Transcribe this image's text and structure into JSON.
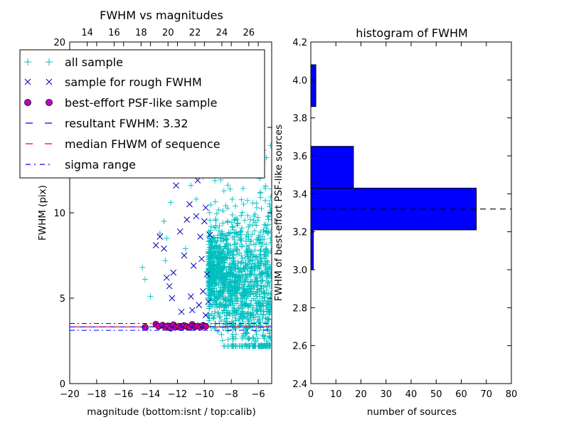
{
  "chart_data": [
    {
      "type": "scatter",
      "title": "FWHM vs magnitudes",
      "xlabel": "magnitude (bottom:isnt / top:calib)",
      "ylabel": "FWHM (pix)",
      "xlim": [
        -20,
        -5
      ],
      "ylim": [
        0,
        20
      ],
      "x_ticks": [
        -20,
        -18,
        -16,
        -14,
        -12,
        -10,
        -8,
        -6
      ],
      "x_tick_labels": [
        "−20",
        "−18",
        "−16",
        "−14",
        "−12",
        "−10",
        "−8",
        "−6"
      ],
      "y_ticks": [
        0,
        5,
        10,
        15,
        20
      ],
      "y_tick_labels": [
        "0",
        "5",
        "10",
        "15",
        "20"
      ],
      "top_x_ticks": [
        14,
        16,
        18,
        20,
        22,
        24,
        26
      ],
      "top_x_offset": 32.7,
      "legend_position": "upper left",
      "series": [
        {
          "name": "all sample",
          "marker": "+",
          "color": "#00bfbf",
          "cluster": {
            "x_range": [
              -9.7,
              -5
            ],
            "y_center": 6.5,
            "y_range": [
              2.2,
              19.5
            ],
            "count": 1500
          },
          "scatter": [
            [
              -14.6,
              6.8
            ],
            [
              -14.4,
              6.1
            ],
            [
              -14.0,
              5.1
            ],
            [
              -13.3,
              8.8
            ],
            [
              -13.0,
              9.5
            ],
            [
              -12.8,
              8.5
            ],
            [
              -12.5,
              10.6
            ],
            [
              -12.0,
              12.6
            ],
            [
              -11.6,
              13.1
            ],
            [
              -11.0,
              11.6
            ],
            [
              -10.6,
              10.8
            ],
            [
              -10.4,
              13.5
            ],
            [
              -10.1,
              12.1
            ],
            [
              -12.9,
              7.2
            ],
            [
              -11.4,
              7.9
            ],
            [
              -14.2,
              3.2
            ],
            [
              -13.1,
              3.4
            ]
          ]
        },
        {
          "name": "sample for rough FWHM",
          "marker": "x",
          "color": "#0000bf",
          "points": [
            [
              -13.6,
              8.1
            ],
            [
              -13.3,
              8.6
            ],
            [
              -13.0,
              7.9
            ],
            [
              -12.8,
              6.2
            ],
            [
              -12.6,
              5.7
            ],
            [
              -12.3,
              6.5
            ],
            [
              -12.1,
              11.6
            ],
            [
              -11.8,
              8.9
            ],
            [
              -11.5,
              7.5
            ],
            [
              -11.3,
              9.6
            ],
            [
              -11.1,
              10.5
            ],
            [
              -11.0,
              5.1
            ],
            [
              -10.8,
              6.9
            ],
            [
              -10.6,
              9.8
            ],
            [
              -10.5,
              11.9
            ],
            [
              -10.3,
              8.6
            ],
            [
              -10.2,
              7.3
            ],
            [
              -10.1,
              5.4
            ],
            [
              -10.0,
              9.5
            ],
            [
              -9.9,
              10.3
            ],
            [
              -9.8,
              6.4
            ],
            [
              -9.7,
              4.8
            ],
            [
              -9.6,
              8.7
            ],
            [
              -10.4,
              4.6
            ],
            [
              -12.4,
              5.0
            ],
            [
              -11.7,
              4.2
            ],
            [
              -10.9,
              4.3
            ],
            [
              -9.9,
              4.0
            ]
          ]
        },
        {
          "name": "best-effort PSF-like sample",
          "marker": "o",
          "color": "#bf00bf",
          "points": [
            [
              -14.4,
              3.3
            ],
            [
              -13.6,
              3.48
            ],
            [
              -13.4,
              3.35
            ],
            [
              -13.1,
              3.42
            ],
            [
              -12.9,
              3.3
            ],
            [
              -12.7,
              3.38
            ],
            [
              -12.5,
              3.25
            ],
            [
              -12.3,
              3.44
            ],
            [
              -12.1,
              3.31
            ],
            [
              -11.9,
              3.36
            ],
            [
              -11.7,
              3.28
            ],
            [
              -11.5,
              3.4
            ],
            [
              -11.3,
              3.34
            ],
            [
              -11.1,
              3.29
            ],
            [
              -10.9,
              3.46
            ],
            [
              -10.7,
              3.33
            ],
            [
              -10.5,
              3.37
            ],
            [
              -10.3,
              3.3
            ],
            [
              -10.1,
              3.41
            ],
            [
              -9.9,
              3.35
            ]
          ]
        },
        {
          "name": "resultant FWHM: 3.32",
          "style": "dashed",
          "color": "#0000ff",
          "y": 3.32
        },
        {
          "name": "median FHWM of sequence",
          "style": "dashed",
          "color": "#ff0000",
          "y": 3.32
        },
        {
          "name": "sigma range",
          "style": "dashdot",
          "color": "#0000ff",
          "y": [
            3.12,
            3.52
          ]
        }
      ]
    },
    {
      "type": "bar",
      "orientation": "horizontal",
      "title": "histogram of FWHM",
      "xlabel": "number of sources",
      "ylabel": "FWHM of best-effort PSF-like sources",
      "xlim": [
        0,
        80
      ],
      "ylim": [
        2.4,
        4.2
      ],
      "x_ticks": [
        0,
        10,
        20,
        30,
        40,
        50,
        60,
        70,
        80
      ],
      "y_ticks": [
        2.4,
        2.6,
        2.8,
        3.0,
        3.2,
        3.4,
        3.6,
        3.8,
        4.0,
        4.2
      ],
      "y_tick_labels": [
        "2.4",
        "2.6",
        "2.8",
        "3.0",
        "3.2",
        "3.4",
        "3.6",
        "3.8",
        "4.0",
        "4.2"
      ],
      "bars": [
        {
          "y0": 3.0,
          "y1": 3.21,
          "count": 1
        },
        {
          "y0": 3.21,
          "y1": 3.43,
          "count": 66
        },
        {
          "y0": 3.43,
          "y1": 3.65,
          "count": 17
        },
        {
          "y0": 3.65,
          "y1": 3.86,
          "count": 0
        },
        {
          "y0": 3.86,
          "y1": 4.08,
          "count": 2
        }
      ],
      "bar_color": "#0000ff",
      "reference_line": {
        "y": 3.32,
        "style": "dashed",
        "color": "#000000"
      }
    }
  ]
}
